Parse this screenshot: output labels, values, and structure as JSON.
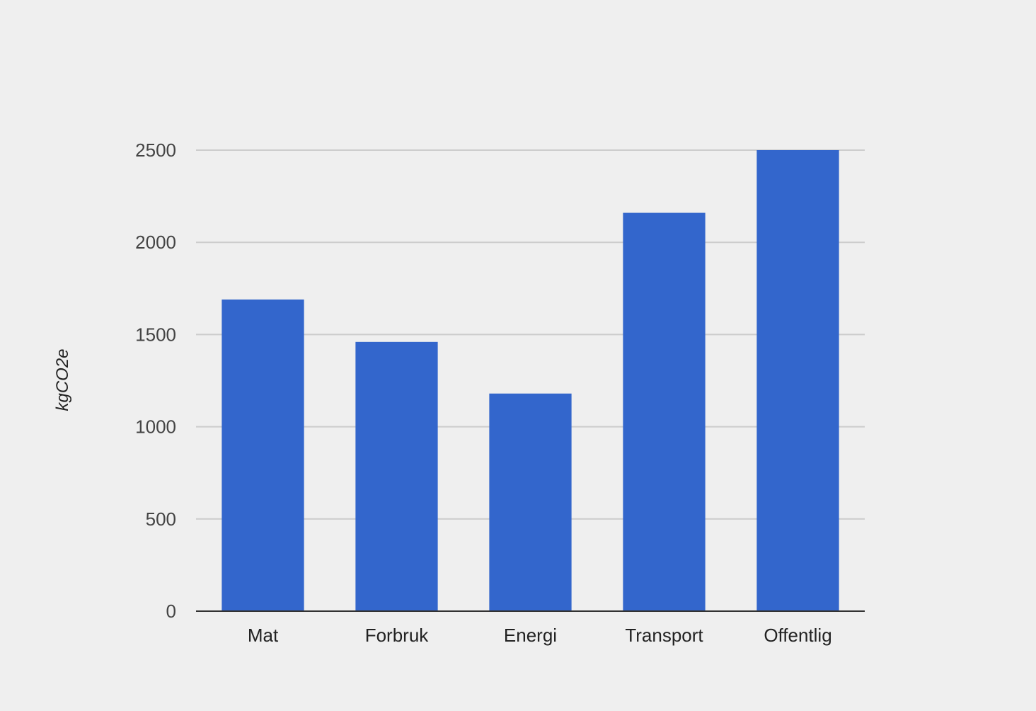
{
  "chart_data": {
    "type": "bar",
    "title": "",
    "xlabel": "",
    "ylabel": "kgCO2e",
    "categories": [
      "Mat",
      "Forbruk",
      "Energi",
      "Transport",
      "Offentlig"
    ],
    "values": [
      1690,
      1460,
      1180,
      2160,
      2500
    ],
    "ylim": [
      0,
      2500
    ],
    "yticks": [
      "0",
      "500",
      "1000",
      "1500",
      "2000",
      "2500"
    ],
    "grid": true,
    "legend": "none",
    "colors": {
      "bar": "#3366cc",
      "grid": "#cccccc",
      "baseline": "#333333"
    }
  }
}
